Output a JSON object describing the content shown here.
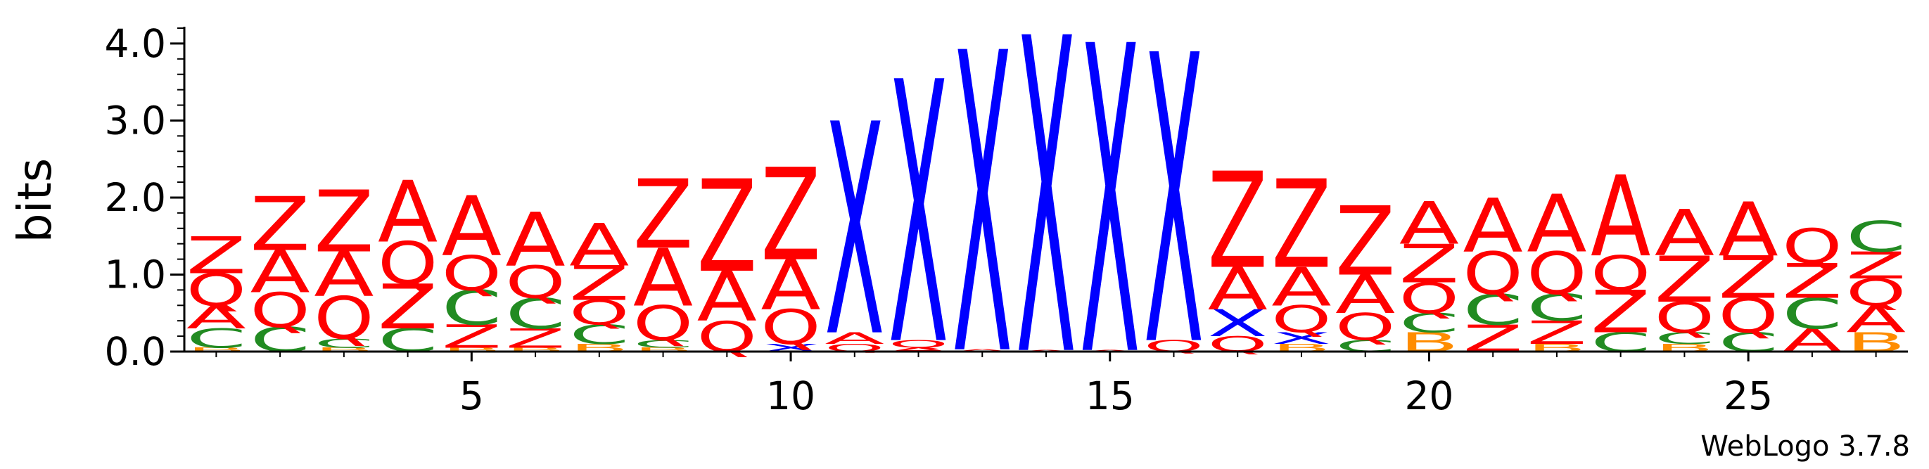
{
  "chart_data": {
    "type": "sequence-logo",
    "ylabel": "bits",
    "ylim": [
      0,
      4.2
    ],
    "yticks": [
      {
        "value": 0.0,
        "label": "0.0"
      },
      {
        "value": 1.0,
        "label": "1.0"
      },
      {
        "value": 2.0,
        "label": "2.0"
      },
      {
        "value": 3.0,
        "label": "3.0"
      },
      {
        "value": 4.0,
        "label": "4.0"
      }
    ],
    "xlim": [
      0.5,
      27.5
    ],
    "xticks": [
      {
        "value": 5,
        "label": "5"
      },
      {
        "value": 10,
        "label": "10"
      },
      {
        "value": 15,
        "label": "15"
      },
      {
        "value": 20,
        "label": "20"
      },
      {
        "value": 25,
        "label": "25"
      }
    ],
    "colors": {
      "A": "#ff0000",
      "Q": "#ff0000",
      "Z": "#ff0000",
      "C": "#228b22",
      "X": "#0000ff",
      "B": "#ff8c00"
    },
    "positions": [
      {
        "pos": 1,
        "stack": [
          [
            "B",
            0.05
          ],
          [
            "C",
            0.25
          ],
          [
            "A",
            0.3
          ],
          [
            "Q",
            0.42
          ],
          [
            "Z",
            0.48
          ]
        ]
      },
      {
        "pos": 2,
        "stack": [
          [
            "C",
            0.32
          ],
          [
            "Q",
            0.45
          ],
          [
            "A",
            0.55
          ],
          [
            "Z",
            0.7
          ]
        ]
      },
      {
        "pos": 3,
        "stack": [
          [
            "B",
            0.05
          ],
          [
            "C",
            0.12
          ],
          [
            "Q",
            0.55
          ],
          [
            "A",
            0.58
          ],
          [
            "Z",
            0.8
          ]
        ]
      },
      {
        "pos": 4,
        "stack": [
          [
            "C",
            0.3
          ],
          [
            "Z",
            0.58
          ],
          [
            "Q",
            0.55
          ],
          [
            "A",
            0.8
          ]
        ]
      },
      {
        "pos": 5,
        "stack": [
          [
            "B",
            0.05
          ],
          [
            "Z",
            0.3
          ],
          [
            "C",
            0.45
          ],
          [
            "Q",
            0.45
          ],
          [
            "A",
            0.78
          ]
        ]
      },
      {
        "pos": 6,
        "stack": [
          [
            "B",
            0.05
          ],
          [
            "Z",
            0.25
          ],
          [
            "C",
            0.4
          ],
          [
            "Q",
            0.42
          ],
          [
            "A",
            0.7
          ]
        ]
      },
      {
        "pos": 7,
        "stack": [
          [
            "B",
            0.1
          ],
          [
            "C",
            0.25
          ],
          [
            "Q",
            0.32
          ],
          [
            "Z",
            0.45
          ],
          [
            "A",
            0.55
          ]
        ]
      },
      {
        "pos": 8,
        "stack": [
          [
            "B",
            0.05
          ],
          [
            "C",
            0.1
          ],
          [
            "Q",
            0.45
          ],
          [
            "A",
            0.75
          ],
          [
            "Z",
            0.9
          ]
        ]
      },
      {
        "pos": 9,
        "stack": [
          [
            "Q",
            0.4
          ],
          [
            "A",
            0.65
          ],
          [
            "Z",
            1.2
          ]
        ]
      },
      {
        "pos": 10,
        "stack": [
          [
            "X",
            0.1
          ],
          [
            "Q",
            0.45
          ],
          [
            "A",
            0.65
          ],
          [
            "Z",
            1.2
          ]
        ]
      },
      {
        "pos": 11,
        "stack": [
          [
            "Q",
            0.1
          ],
          [
            "A",
            0.15
          ],
          [
            "X",
            2.75
          ]
        ]
      },
      {
        "pos": 12,
        "stack": [
          [
            "A",
            0.05
          ],
          [
            "Q",
            0.1
          ],
          [
            "X",
            3.4
          ]
        ]
      },
      {
        "pos": 13,
        "stack": [
          [
            "A",
            0.03
          ],
          [
            "X",
            3.9
          ]
        ]
      },
      {
        "pos": 14,
        "stack": [
          [
            "A",
            0.02
          ],
          [
            "X",
            4.1
          ]
        ]
      },
      {
        "pos": 15,
        "stack": [
          [
            "A",
            0.02
          ],
          [
            "X",
            4.0
          ]
        ]
      },
      {
        "pos": 16,
        "stack": [
          [
            "Q",
            0.15
          ],
          [
            "X",
            3.75
          ]
        ]
      },
      {
        "pos": 17,
        "stack": [
          [
            "Q",
            0.2
          ],
          [
            "X",
            0.35
          ],
          [
            "A",
            0.55
          ],
          [
            "Z",
            1.25
          ]
        ]
      },
      {
        "pos": 18,
        "stack": [
          [
            "B",
            0.1
          ],
          [
            "X",
            0.15
          ],
          [
            "Q",
            0.35
          ],
          [
            "A",
            0.5
          ],
          [
            "Z",
            1.15
          ]
        ]
      },
      {
        "pos": 19,
        "stack": [
          [
            "C",
            0.15
          ],
          [
            "Q",
            0.35
          ],
          [
            "A",
            0.5
          ],
          [
            "Z",
            0.9
          ]
        ]
      },
      {
        "pos": 20,
        "stack": [
          [
            "B",
            0.25
          ],
          [
            "C",
            0.25
          ],
          [
            "Q",
            0.4
          ],
          [
            "Z",
            0.5
          ],
          [
            "A",
            0.55
          ]
        ]
      },
      {
        "pos": 21,
        "stack": [
          [
            "Z",
            0.35
          ],
          [
            "C",
            0.4
          ],
          [
            "Q",
            0.55
          ],
          [
            "A",
            0.7
          ]
        ]
      },
      {
        "pos": 22,
        "stack": [
          [
            "B",
            0.1
          ],
          [
            "Z",
            0.3
          ],
          [
            "C",
            0.35
          ],
          [
            "Q",
            0.55
          ],
          [
            "A",
            0.75
          ]
        ]
      },
      {
        "pos": 23,
        "stack": [
          [
            "C",
            0.25
          ],
          [
            "Z",
            0.55
          ],
          [
            "Q",
            0.45
          ],
          [
            "A",
            1.05
          ]
        ]
      },
      {
        "pos": 24,
        "stack": [
          [
            "B",
            0.1
          ],
          [
            "C",
            0.15
          ],
          [
            "Q",
            0.4
          ],
          [
            "Z",
            0.6
          ],
          [
            "A",
            0.6
          ]
        ]
      },
      {
        "pos": 25,
        "stack": [
          [
            "C",
            0.25
          ],
          [
            "Q",
            0.45
          ],
          [
            "Z",
            0.55
          ],
          [
            "A",
            0.7
          ]
        ]
      },
      {
        "pos": 26,
        "stack": [
          [
            "A",
            0.3
          ],
          [
            "C",
            0.4
          ],
          [
            "Z",
            0.45
          ],
          [
            "Q",
            0.45
          ]
        ]
      },
      {
        "pos": 27,
        "stack": [
          [
            "B",
            0.25
          ],
          [
            "A",
            0.35
          ],
          [
            "Q",
            0.35
          ],
          [
            "Z",
            0.35
          ],
          [
            "C",
            0.4
          ]
        ]
      }
    ],
    "credit": "WebLogo 3.7.8"
  }
}
